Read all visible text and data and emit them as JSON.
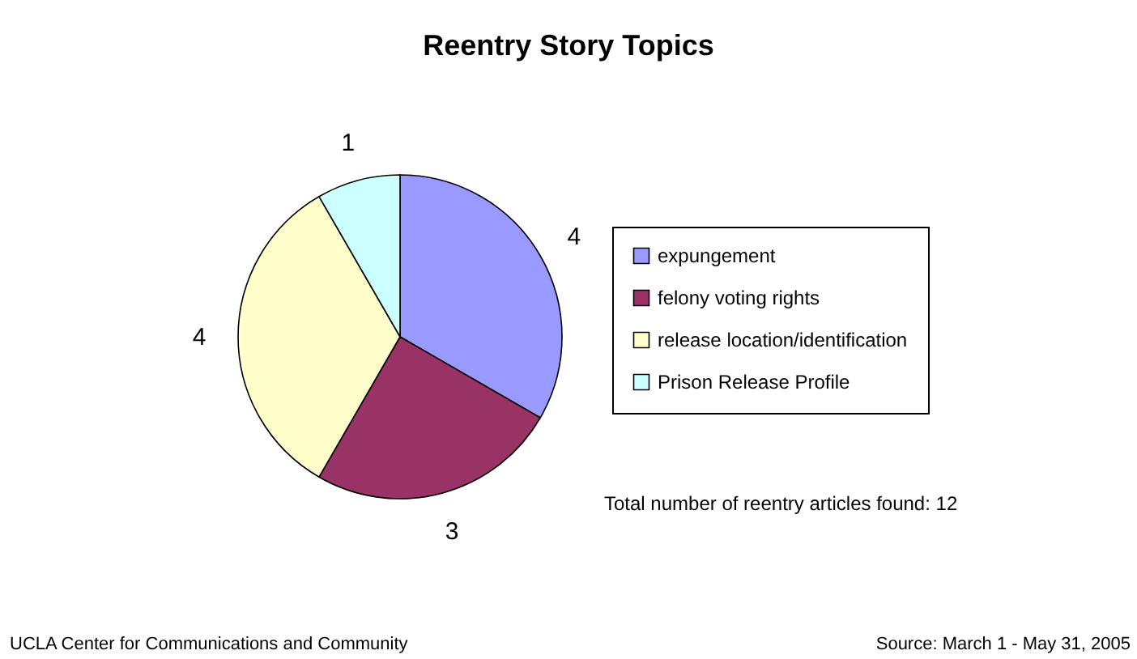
{
  "chart_data": {
    "type": "pie",
    "title": "Reentry Story Topics",
    "categories": [
      "expungement",
      "felony voting rights",
      "release location/identification",
      "Prison Release Profile"
    ],
    "values": [
      4,
      3,
      4,
      1
    ],
    "colors": [
      "#9999ff",
      "#993366",
      "#ffffcc",
      "#ccffff"
    ],
    "data_labels": true,
    "legend": "right",
    "annotations": [
      "Total number of reentry articles found: 12",
      "UCLA Center for Communications and Community",
      "Source: March 1 - May 31, 2005"
    ]
  }
}
